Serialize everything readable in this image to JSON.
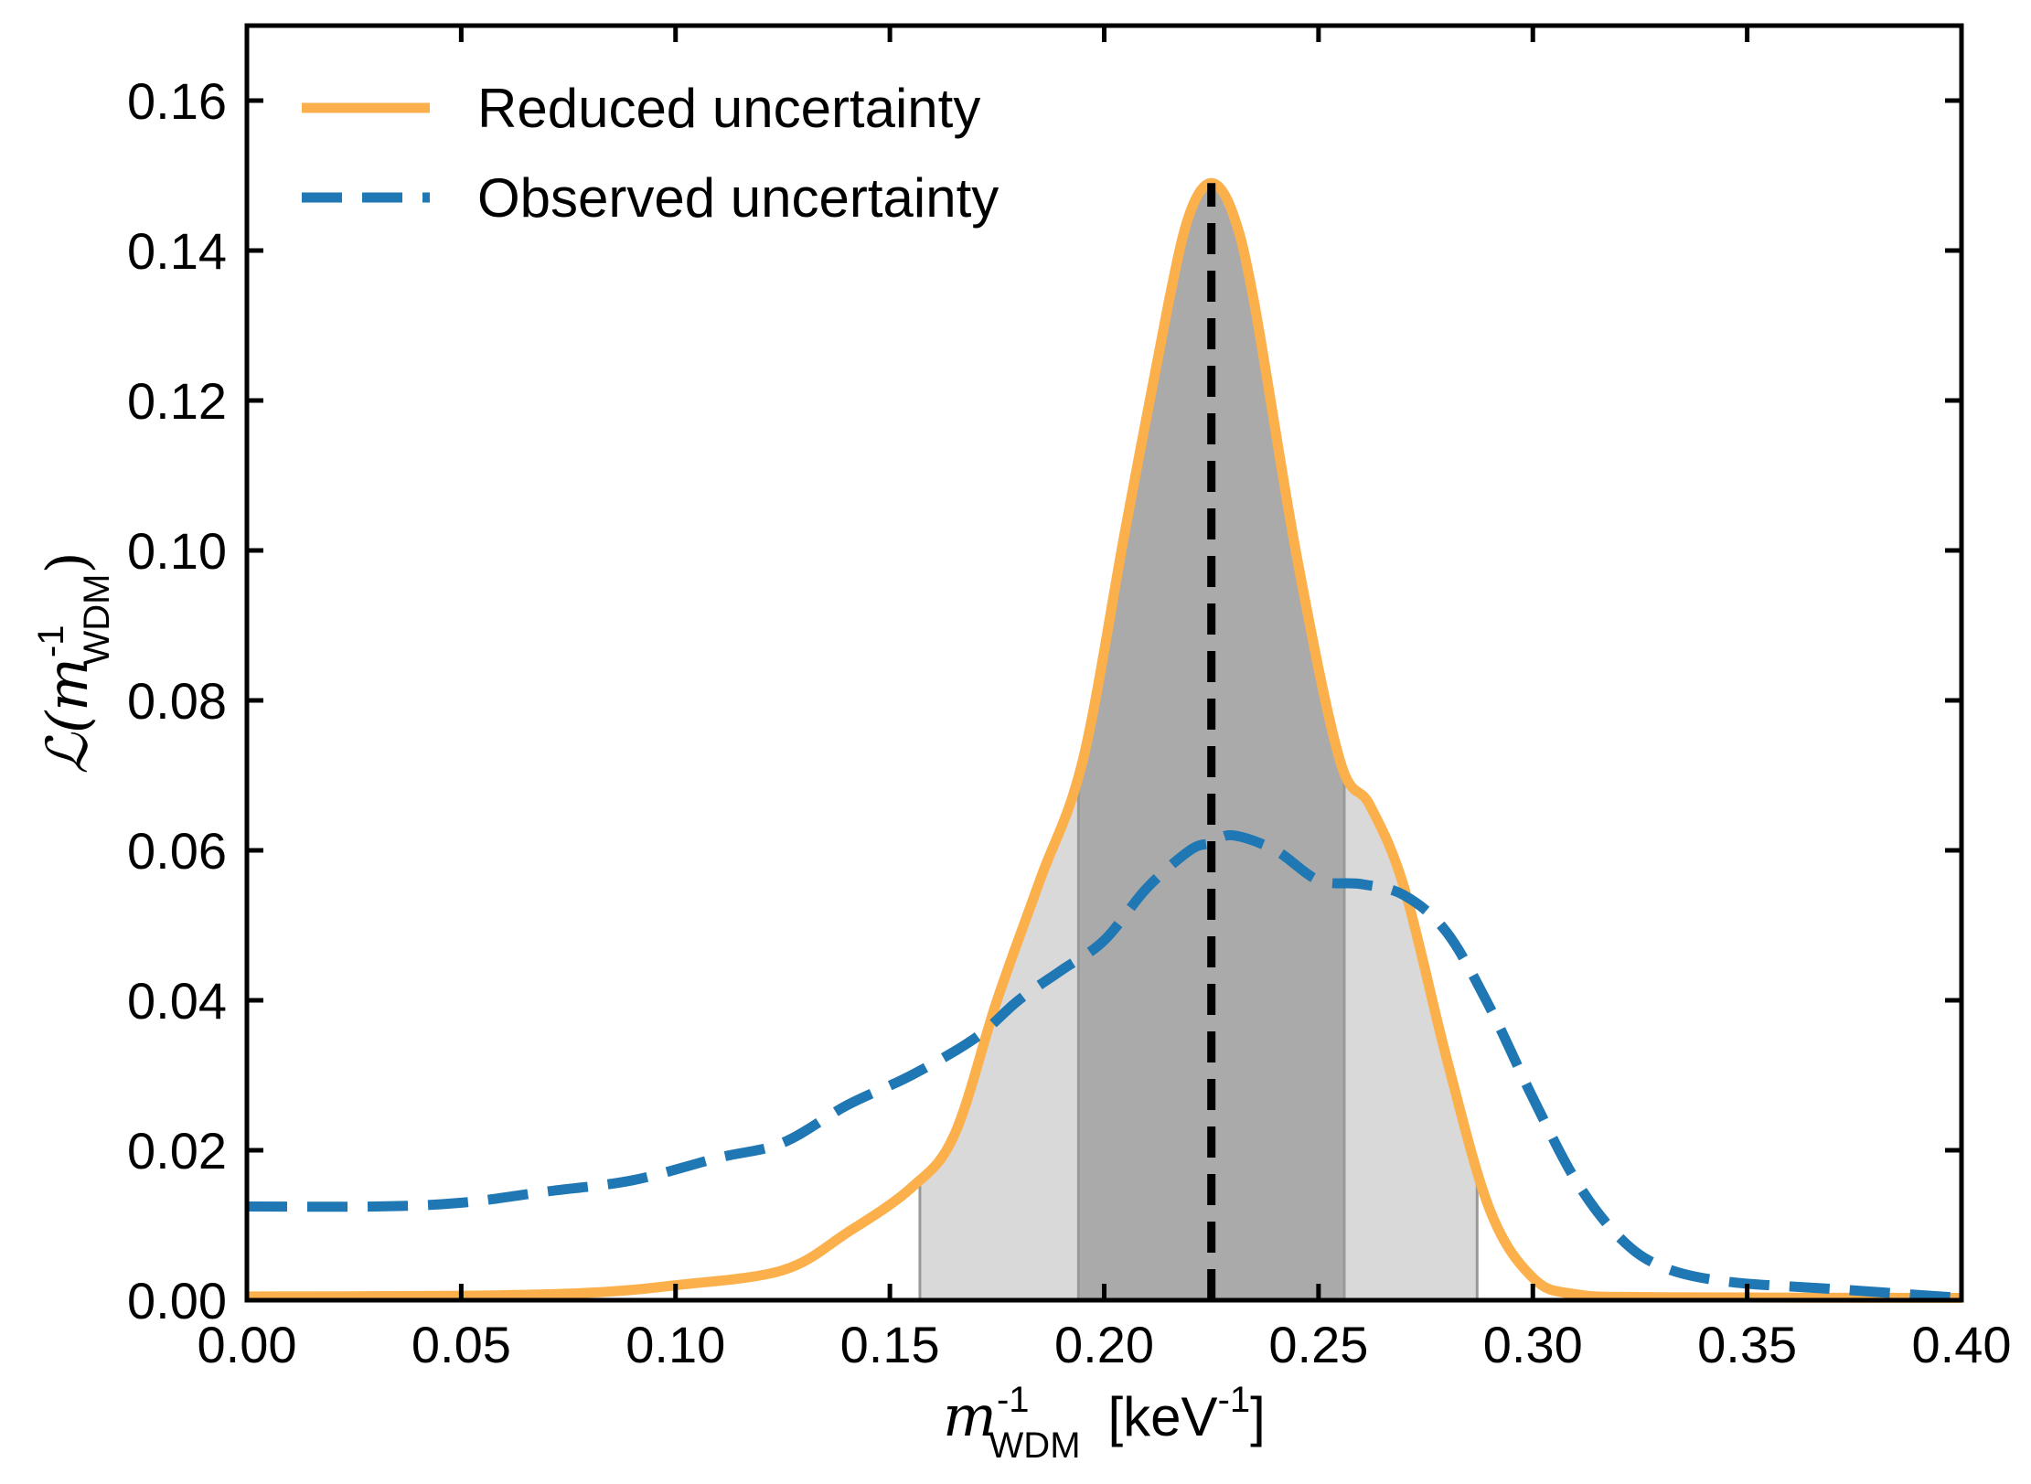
{
  "chart_data": {
    "type": "line",
    "xlabel": {
      "symbol": "m",
      "sup": "-1",
      "sub": "WDM",
      "unit": "[keV",
      "unit_sup": "-1",
      "unit_close": "]"
    },
    "ylabel": {
      "prefix": "ℒ(",
      "symbol": "m",
      "sup": "-1",
      "sub": "WDM",
      "suffix": ")"
    },
    "xlim": [
      0.0,
      0.4
    ],
    "ylim": [
      0.0,
      0.17
    ],
    "xticks": [
      "0.00",
      "0.05",
      "0.10",
      "0.15",
      "0.20",
      "0.25",
      "0.30",
      "0.35",
      "0.40"
    ],
    "yticks": [
      "0.00",
      "0.02",
      "0.04",
      "0.06",
      "0.08",
      "0.10",
      "0.12",
      "0.14",
      "0.16"
    ],
    "grid": false,
    "legend_position": "top-left",
    "series": [
      {
        "name": "Reduced uncertainty",
        "style": "solid",
        "color": "#FBB04C",
        "x": [
          0.0,
          0.05,
          0.08,
          0.1,
          0.125,
          0.14,
          0.155,
          0.165,
          0.175,
          0.185,
          0.195,
          0.205,
          0.215,
          0.22,
          0.225,
          0.23,
          0.235,
          0.245,
          0.255,
          0.262,
          0.27,
          0.28,
          0.29,
          0.3,
          0.31,
          0.33,
          0.4
        ],
        "y": [
          0.0005,
          0.0006,
          0.001,
          0.002,
          0.004,
          0.009,
          0.015,
          0.022,
          0.04,
          0.056,
          0.072,
          0.103,
          0.133,
          0.145,
          0.149,
          0.145,
          0.133,
          0.099,
          0.072,
          0.066,
          0.055,
          0.032,
          0.012,
          0.003,
          0.0008,
          0.0004,
          0.0003
        ]
      },
      {
        "name": "Observed uncertainty",
        "style": "dashed",
        "color": "#1F77B4",
        "x": [
          0.0,
          0.03,
          0.05,
          0.07,
          0.09,
          0.11,
          0.125,
          0.14,
          0.155,
          0.17,
          0.18,
          0.19,
          0.2,
          0.21,
          0.22,
          0.225,
          0.23,
          0.24,
          0.25,
          0.26,
          0.27,
          0.28,
          0.29,
          0.3,
          0.31,
          0.32,
          0.33,
          0.345,
          0.37,
          0.4
        ],
        "y": [
          0.0125,
          0.0125,
          0.013,
          0.0145,
          0.016,
          0.019,
          0.021,
          0.026,
          0.03,
          0.035,
          0.04,
          0.044,
          0.048,
          0.055,
          0.06,
          0.061,
          0.062,
          0.06,
          0.056,
          0.0555,
          0.054,
          0.049,
          0.039,
          0.027,
          0.016,
          0.0085,
          0.0045,
          0.0025,
          0.0015,
          0.0003
        ]
      }
    ],
    "peak_marker": {
      "x": 0.225,
      "y_top": 0.149,
      "style": "dashed",
      "color": "#000000"
    },
    "bands": [
      {
        "x0": 0.157,
        "x1": 0.287,
        "color": "#d9d9d9"
      },
      {
        "x0": 0.194,
        "x1": 0.256,
        "color": "#aaaaaa"
      }
    ]
  }
}
